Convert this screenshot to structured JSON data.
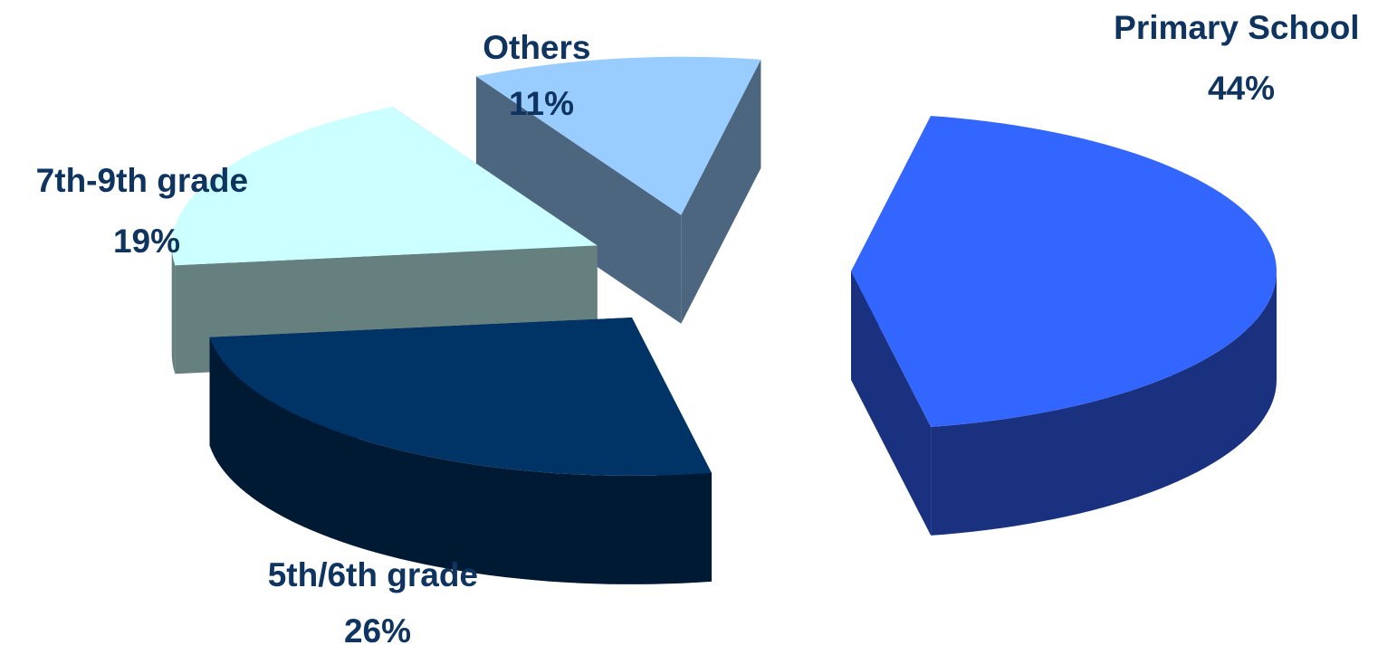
{
  "chart_data": {
    "type": "pie",
    "style": "3d-exploded",
    "slices": [
      {
        "name": "Primary School",
        "value": 44,
        "value_label": "44%",
        "color": "#3366ff",
        "side_color": "#1a3180"
      },
      {
        "name": "5th/6th grade",
        "value": 26,
        "value_label": "26%",
        "color": "#003366",
        "side_color": "#001a33"
      },
      {
        "name": "7th-9th grade",
        "value": 19,
        "value_label": "19%",
        "color": "#ccffff",
        "side_color": "#668080"
      },
      {
        "name": "Others",
        "value": 11,
        "value_label": "11%",
        "color": "#99ccff",
        "side_color": "#4d6680"
      }
    ],
    "label_color": "#0f3460",
    "legend": "none"
  }
}
